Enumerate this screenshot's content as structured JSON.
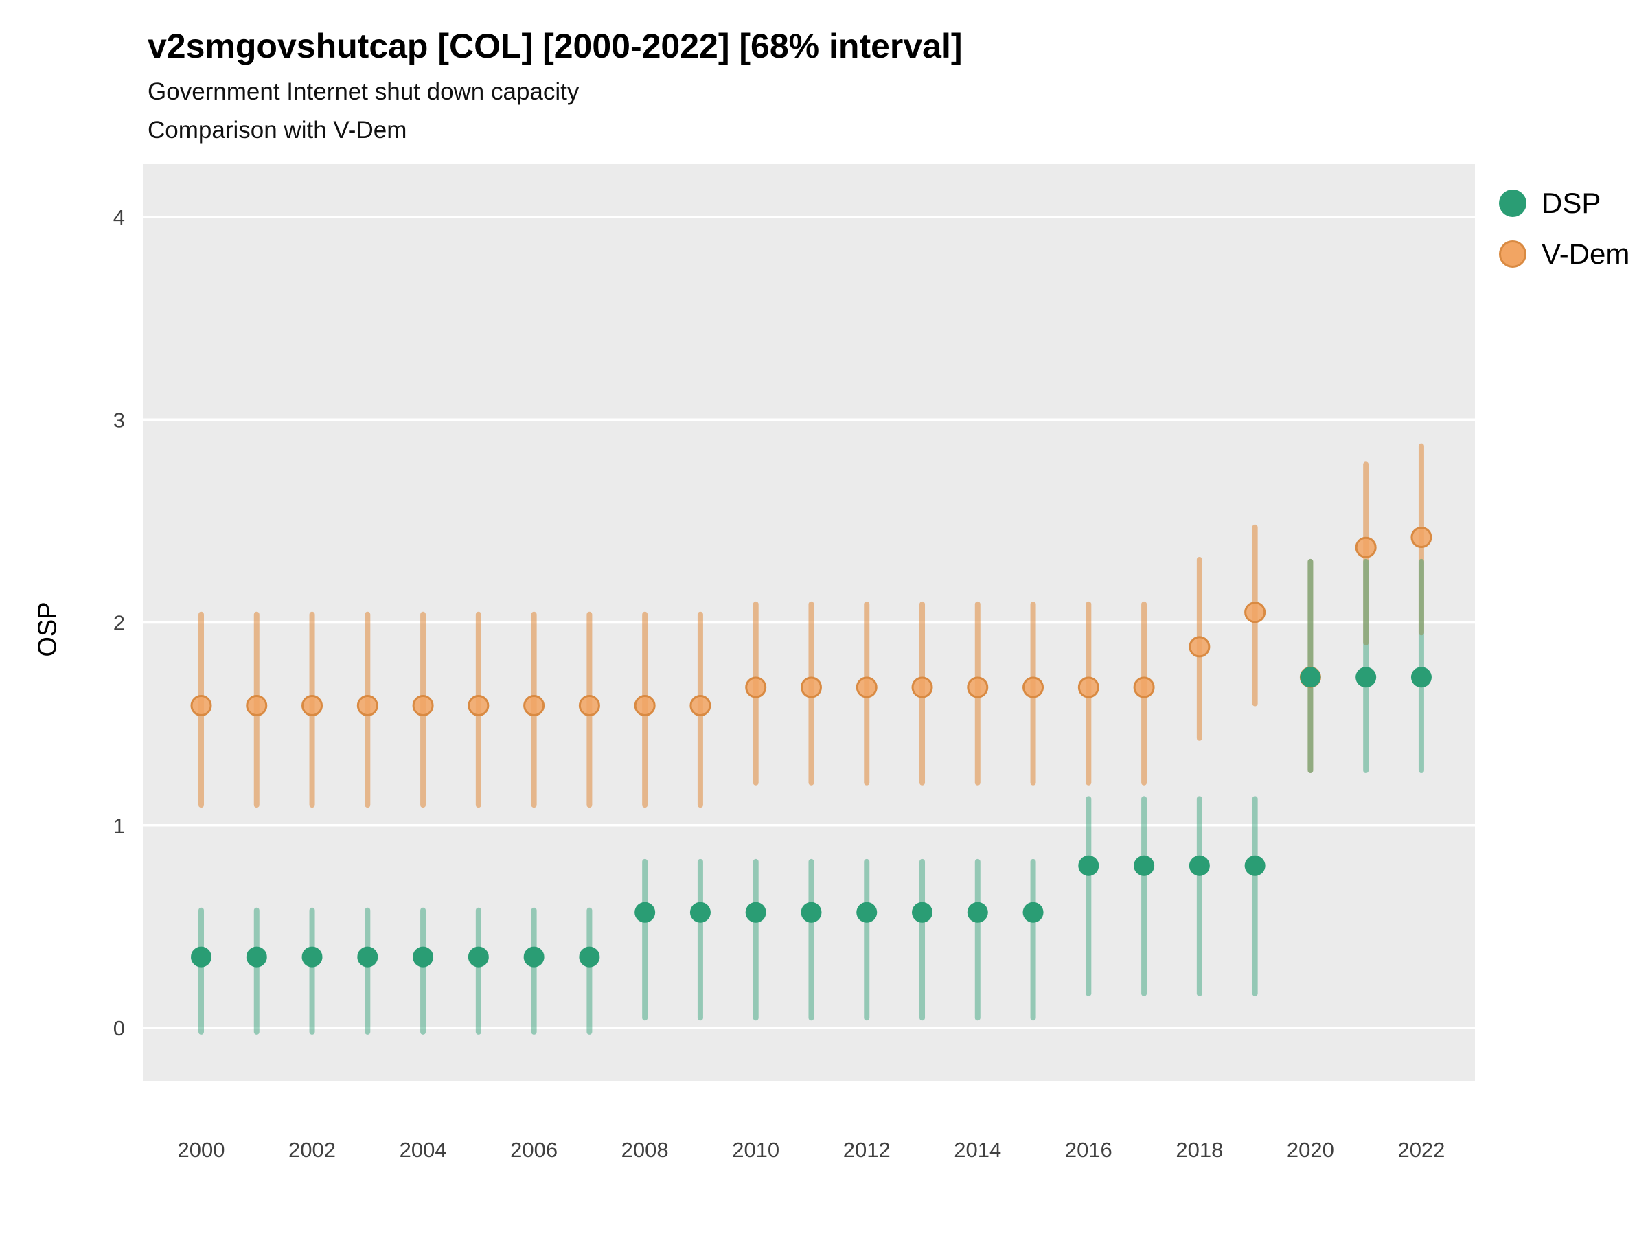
{
  "header": {
    "title": "v2smgovshutcap [COL] [2000-2022] [68% interval]",
    "subtitle_line1": "Government Internet shut down capacity",
    "subtitle_line2": "Comparison with V-Dem"
  },
  "axes": {
    "y_label": "OSP",
    "y_tick_labels": [
      "0",
      "1",
      "2",
      "3",
      "4"
    ],
    "x_tick_labels": [
      "2000",
      "2002",
      "2004",
      "2006",
      "2008",
      "2010",
      "2012",
      "2014",
      "2016",
      "2018",
      "2020",
      "2022"
    ]
  },
  "legend": {
    "items": [
      {
        "label": "DSP",
        "color": "#2a9d74",
        "stroke": "#2a9d74"
      },
      {
        "label": "V-Dem",
        "color": "#f2a563",
        "stroke": "#d98a42"
      }
    ]
  },
  "chart_data": {
    "type": "scatter",
    "title": "v2smgovshutcap [COL] [2000-2022] [68% interval]",
    "subtitle": "Government Internet shut down capacity — Comparison with V-Dem",
    "interval": "68%",
    "xlabel": "",
    "ylabel": "OSP",
    "x": [
      2000,
      2001,
      2002,
      2003,
      2004,
      2005,
      2006,
      2007,
      2008,
      2009,
      2010,
      2011,
      2012,
      2013,
      2014,
      2015,
      2016,
      2017,
      2018,
      2019,
      2020,
      2021,
      2022
    ],
    "yticks": [
      0,
      1,
      2,
      3,
      4
    ],
    "ylim": [
      -0.26,
      4.26
    ],
    "grid": true,
    "legend_position": "right",
    "panel_bg": "#ebebeb",
    "grid_color": "#ffffff",
    "series": [
      {
        "name": "V-Dem",
        "point_color": "#f2a563",
        "point_stroke": "#d98a42",
        "bar_color": "#e08a3c",
        "values": [
          1.59,
          1.59,
          1.59,
          1.59,
          1.59,
          1.59,
          1.59,
          1.59,
          1.59,
          1.59,
          1.68,
          1.68,
          1.68,
          1.68,
          1.68,
          1.68,
          1.68,
          1.68,
          1.88,
          2.05,
          1.73,
          2.37,
          2.42
        ],
        "lo": [
          1.1,
          1.1,
          1.1,
          1.1,
          1.1,
          1.1,
          1.1,
          1.1,
          1.1,
          1.1,
          1.21,
          1.21,
          1.21,
          1.21,
          1.21,
          1.21,
          1.21,
          1.21,
          1.43,
          1.6,
          1.27,
          1.9,
          1.95
        ],
        "hi": [
          2.04,
          2.04,
          2.04,
          2.04,
          2.04,
          2.04,
          2.04,
          2.04,
          2.04,
          2.04,
          2.09,
          2.09,
          2.09,
          2.09,
          2.09,
          2.09,
          2.09,
          2.09,
          2.31,
          2.47,
          2.3,
          2.78,
          2.87
        ]
      },
      {
        "name": "DSP",
        "point_color": "#2a9d74",
        "point_stroke": "#2a9d74",
        "bar_color": "#2a9d74",
        "values": [
          0.35,
          0.35,
          0.35,
          0.35,
          0.35,
          0.35,
          0.35,
          0.35,
          0.57,
          0.57,
          0.57,
          0.57,
          0.57,
          0.57,
          0.57,
          0.57,
          0.8,
          0.8,
          0.8,
          0.8,
          1.73,
          1.73,
          1.73
        ],
        "lo": [
          -0.02,
          -0.02,
          -0.02,
          -0.02,
          -0.02,
          -0.02,
          -0.02,
          -0.02,
          0.05,
          0.05,
          0.05,
          0.05,
          0.05,
          0.05,
          0.05,
          0.05,
          0.17,
          0.17,
          0.17,
          0.17,
          1.27,
          1.27,
          1.27
        ],
        "hi": [
          0.58,
          0.58,
          0.58,
          0.58,
          0.58,
          0.58,
          0.58,
          0.58,
          0.82,
          0.82,
          0.82,
          0.82,
          0.82,
          0.82,
          0.82,
          0.82,
          1.13,
          1.13,
          1.13,
          1.13,
          2.3,
          2.3,
          2.3
        ]
      }
    ]
  }
}
